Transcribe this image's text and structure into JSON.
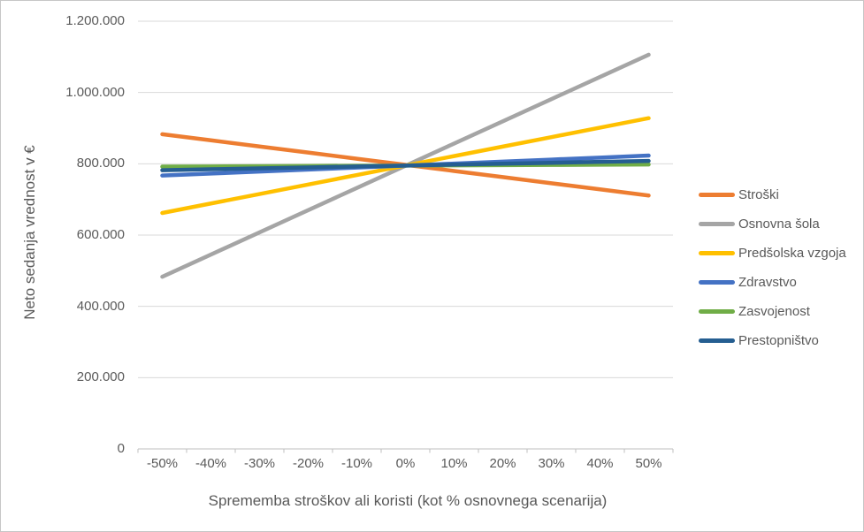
{
  "chart_data": {
    "type": "line",
    "title": "",
    "xlabel": "Sprememba stroškov ali koristi (kot % osnovnega scenarija)",
    "ylabel": "Neto sedanja vrednost v €",
    "categories": [
      "-50%",
      "-40%",
      "-30%",
      "-20%",
      "-10%",
      "0%",
      "10%",
      "20%",
      "30%",
      "40%",
      "50%"
    ],
    "series": [
      {
        "name": "Stroški",
        "color": "#ED7D31",
        "values": [
          883000,
          865800,
          848600,
          831400,
          814200,
          797000,
          779800,
          762600,
          745400,
          728200,
          711000
        ]
      },
      {
        "name": "Osnovna šola",
        "color": "#A5A5A5",
        "values": [
          483000,
          545300,
          607600,
          669900,
          732200,
          794500,
          856800,
          919100,
          981400,
          1043700,
          1106000
        ]
      },
      {
        "name": "Predšolska vzgoja",
        "color": "#FFC000",
        "values": [
          662000,
          688600,
          715200,
          741800,
          768400,
          795000,
          821600,
          848200,
          874800,
          901400,
          928000
        ]
      },
      {
        "name": "Zdravstvo",
        "color": "#4472C4",
        "values": [
          767000,
          772600,
          778200,
          783800,
          789400,
          795000,
          800600,
          806200,
          811800,
          817400,
          823000
        ]
      },
      {
        "name": "Zasvojenost",
        "color": "#70AD47",
        "values": [
          792000,
          792600,
          793200,
          793800,
          794400,
          795000,
          795600,
          796200,
          796800,
          797400,
          798000
        ]
      },
      {
        "name": "Prestopništvo",
        "color": "#255E91",
        "values": [
          782000,
          784600,
          787200,
          789800,
          792400,
          795000,
          797600,
          800200,
          802800,
          805400,
          808000
        ]
      }
    ],
    "ylim": [
      0,
      1200000
    ],
    "yticks": [
      0,
      200000,
      400000,
      600000,
      800000,
      1000000,
      1200000
    ],
    "ytick_labels": [
      "0",
      "200.000",
      "400.000",
      "600.000",
      "800.000",
      "1.000.000",
      "1.200.000"
    ],
    "grid": "horizontal",
    "legend_position": "right",
    "style": {
      "text_color": "#595959",
      "gridline_color": "#D9D9D9",
      "axis_line_color": "#BFBFBF",
      "line_width": 4.5
    }
  }
}
